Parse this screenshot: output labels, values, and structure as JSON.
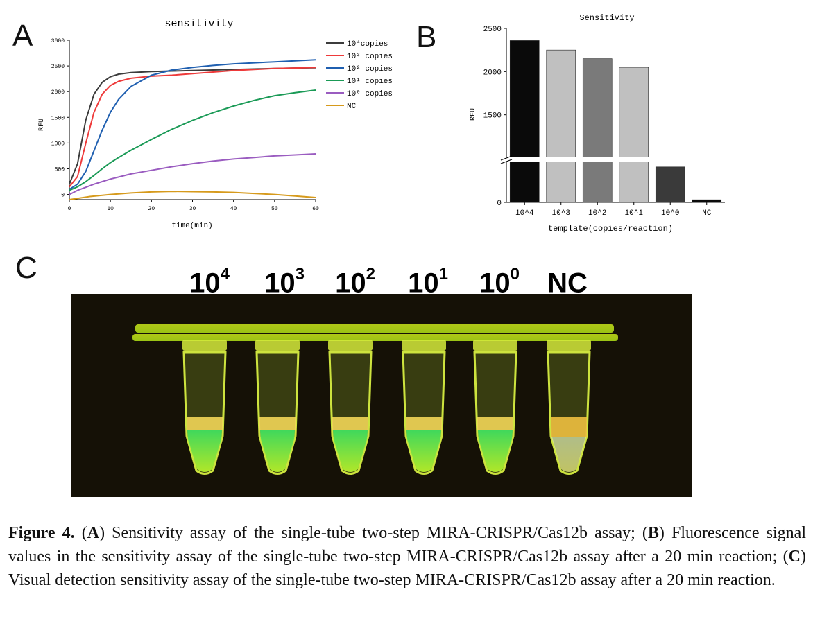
{
  "panel_labels": {
    "a": "A",
    "b": "B",
    "c": "C"
  },
  "chart_data": [
    {
      "type": "line",
      "title": "sensitivity",
      "xlabel": "time(min)",
      "ylabel": "RFU",
      "xlim": [
        0,
        60
      ],
      "ylim": [
        0,
        3000
      ],
      "xticks": [
        0,
        10,
        20,
        30,
        40,
        50,
        60
      ],
      "yticks": [
        0,
        500,
        1000,
        1500,
        2000,
        2500,
        3000
      ],
      "legend_position": "top-right",
      "series": [
        {
          "name": "10⁴copies",
          "color": "#3c3c3c",
          "x": [
            0,
            2,
            4,
            6,
            8,
            10,
            12,
            15,
            20,
            25,
            30,
            35,
            40,
            45,
            50,
            55,
            60
          ],
          "y": [
            200,
            600,
            1450,
            1950,
            2180,
            2290,
            2340,
            2370,
            2390,
            2400,
            2410,
            2420,
            2430,
            2440,
            2450,
            2460,
            2465
          ]
        },
        {
          "name": "10³ copies",
          "color": "#ee3a3a",
          "x": [
            0,
            2,
            4,
            6,
            8,
            10,
            12,
            15,
            20,
            25,
            30,
            35,
            40,
            45,
            50,
            55,
            60
          ],
          "y": [
            150,
            350,
            1000,
            1600,
            1950,
            2120,
            2200,
            2260,
            2300,
            2320,
            2350,
            2380,
            2410,
            2430,
            2450,
            2460,
            2470
          ]
        },
        {
          "name": "10² copies",
          "color": "#1f5fb0",
          "x": [
            0,
            2,
            4,
            6,
            8,
            10,
            12,
            15,
            20,
            25,
            30,
            35,
            40,
            45,
            50,
            55,
            60
          ],
          "y": [
            100,
            200,
            450,
            850,
            1250,
            1600,
            1850,
            2100,
            2320,
            2420,
            2470,
            2510,
            2540,
            2560,
            2580,
            2600,
            2620
          ]
        },
        {
          "name": "10¹ copies",
          "color": "#1a9a56",
          "x": [
            0,
            2,
            4,
            6,
            8,
            10,
            12,
            15,
            20,
            25,
            30,
            35,
            40,
            45,
            50,
            55,
            60
          ],
          "y": [
            80,
            150,
            250,
            370,
            500,
            620,
            720,
            860,
            1070,
            1270,
            1440,
            1590,
            1720,
            1830,
            1920,
            1980,
            2030
          ]
        },
        {
          "name": "10⁰ copies",
          "color": "#9a5cc0",
          "x": [
            0,
            2,
            4,
            6,
            8,
            10,
            12,
            15,
            20,
            25,
            30,
            35,
            40,
            45,
            50,
            55,
            60
          ],
          "y": [
            0,
            80,
            140,
            200,
            250,
            300,
            340,
            400,
            470,
            540,
            600,
            650,
            690,
            720,
            750,
            770,
            790
          ]
        },
        {
          "name": "NC",
          "color": "#d69a1c",
          "x": [
            0,
            5,
            10,
            15,
            20,
            25,
            30,
            35,
            40,
            45,
            50,
            55,
            60
          ],
          "y": [
            -100,
            -40,
            0,
            30,
            50,
            60,
            55,
            50,
            40,
            20,
            0,
            -30,
            -60
          ]
        }
      ]
    },
    {
      "type": "bar",
      "title": "Sensitivity",
      "xlabel": "template(copies/reaction)",
      "ylabel": "RFU",
      "categories": [
        "10^4",
        "10^3",
        "10^2",
        "10^1",
        "10^0",
        "NC"
      ],
      "values": [
        2360,
        2250,
        2150,
        2050,
        800,
        60
      ],
      "colors": [
        "#0a0a0a",
        "#c0c0c0",
        "#7a7a7a",
        "#c0c0c0",
        "#3a3a3a",
        "#0a0a0a"
      ],
      "yticks": [
        "0",
        "1500",
        "2000",
        "2500"
      ],
      "axis_break": true,
      "ylim": [
        0,
        2500
      ]
    }
  ],
  "panel_c": {
    "labels": [
      {
        "base": "10",
        "exp": "4"
      },
      {
        "base": "10",
        "exp": "3"
      },
      {
        "base": "10",
        "exp": "2"
      },
      {
        "base": "10",
        "exp": "1"
      },
      {
        "base": "10",
        "exp": "0"
      },
      {
        "base": "NC",
        "exp": ""
      }
    ]
  },
  "caption": {
    "figure": "Figure 4.",
    "part1": "(",
    "a": "A",
    "text_a": ") Sensitivity assay of the single-tube two-step MIRA-CRISPR/Cas12b assay; (",
    "b": "B",
    "text_b": ") Fluorescence signal values in the sensitivity assay of the single-tube two-step MIRA-CRISPR/Cas12b assay after a 20 min reaction; (",
    "c": "C",
    "text_c": ") Visual detection sensitivity assay of the single-tube two-step MIRA-CRISPR/Cas12b assay after a 20 min reaction."
  }
}
